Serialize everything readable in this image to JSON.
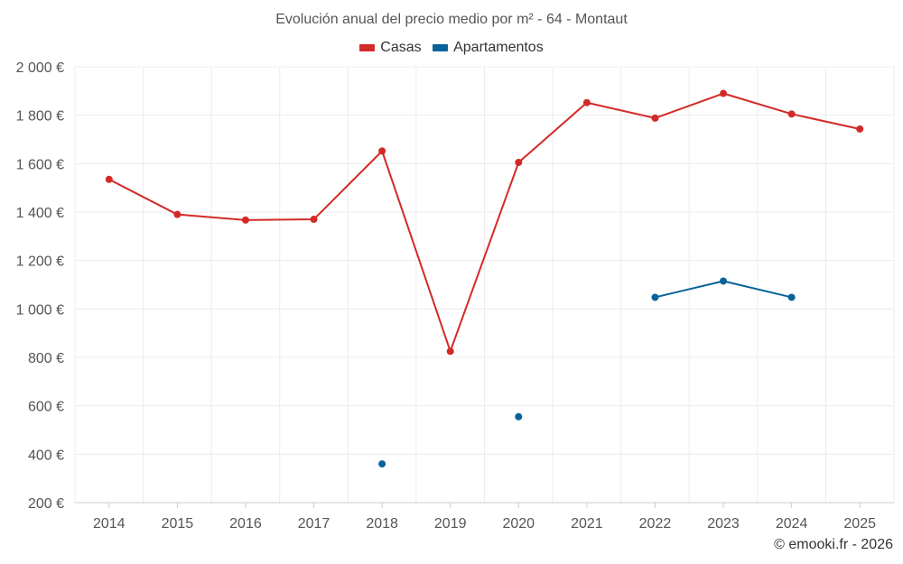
{
  "chart_data": {
    "type": "line",
    "title": "Evolución anual del precio medio por m² - 64 - Montaut",
    "xlabel": "",
    "ylabel": "",
    "categories": [
      "2014",
      "2015",
      "2016",
      "2017",
      "2018",
      "2019",
      "2020",
      "2021",
      "2022",
      "2023",
      "2024",
      "2025"
    ],
    "ylim": [
      200,
      2000
    ],
    "yticks": [
      200,
      400,
      600,
      800,
      1000,
      1200,
      1400,
      1600,
      1800,
      2000
    ],
    "ytick_labels": [
      "200 €",
      "400 €",
      "600 €",
      "800 €",
      "1 000 €",
      "1 200 €",
      "1 400 €",
      "1 600 €",
      "1 800 €",
      "2 000 €"
    ],
    "grid": true,
    "legend_position": "top-center",
    "series": [
      {
        "name": "Casas",
        "color": "#d32a27",
        "values": [
          1535,
          1390,
          1367,
          1370,
          1652,
          825,
          1605,
          1852,
          1788,
          1890,
          1805,
          1743
        ]
      },
      {
        "name": "Apartamentos",
        "color": "#07639a",
        "values": [
          null,
          null,
          null,
          null,
          360,
          null,
          555,
          null,
          1048,
          1115,
          1048,
          null
        ]
      }
    ],
    "credit": "© emooki.fr - 2026"
  }
}
